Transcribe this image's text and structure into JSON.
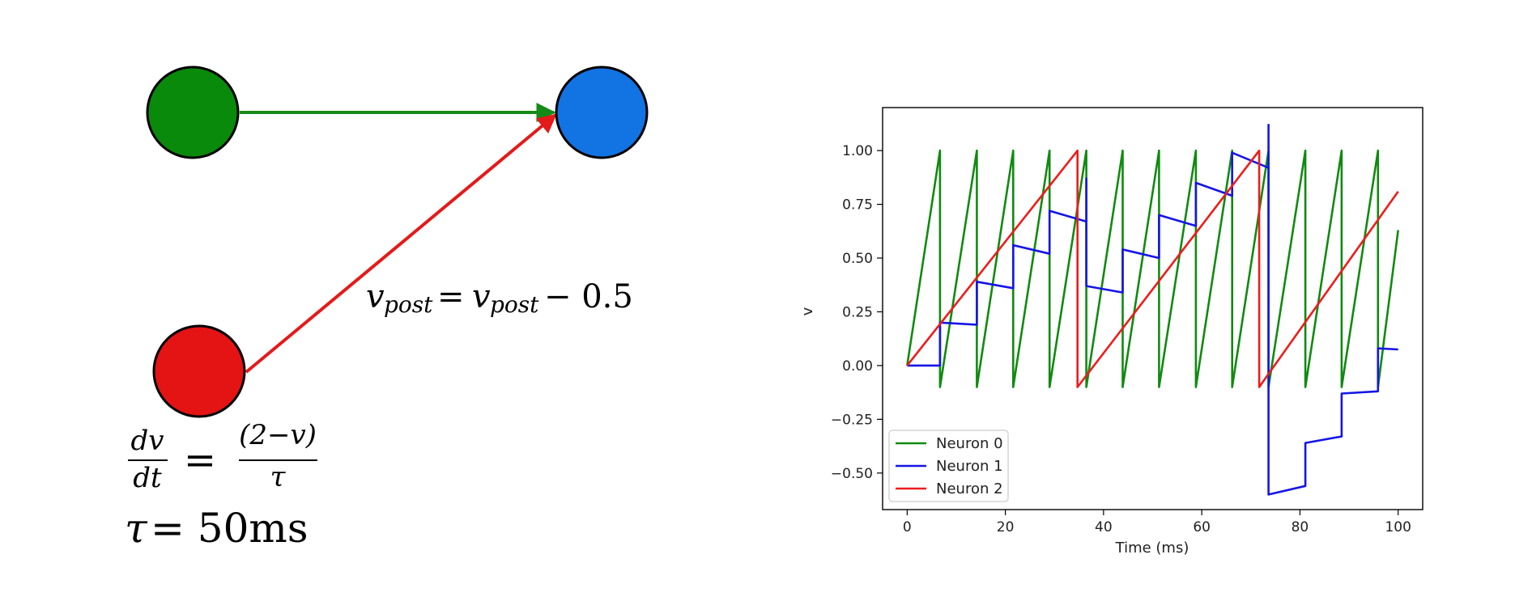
{
  "diagram": {
    "colors": {
      "neuron_green": "#0a8a0a",
      "neuron_blue": "#1273e3",
      "neuron_red": "#e41414",
      "edge_green": "#168a16",
      "edge_red": "#e41a1a"
    },
    "edge_label": {
      "lhs": "v",
      "lhs_sub": "post",
      "rhs": "v",
      "rhs_sub": "post",
      "minus_value": "− 0.5"
    },
    "equation": {
      "num_left": "dv",
      "den_left": "dt",
      "num_right": "(2−v)",
      "den_right": "τ"
    },
    "tau_label": {
      "symbol": "τ",
      "value": "= 50ms"
    }
  },
  "chart_data": {
    "type": "line",
    "xlabel": "Time (ms)",
    "ylabel": "v",
    "xlim": [
      -5,
      105
    ],
    "ylim": [
      -0.67,
      1.2
    ],
    "xticks": [
      0,
      20,
      40,
      60,
      80,
      100
    ],
    "yticks": [
      -0.5,
      -0.25,
      0.0,
      0.25,
      0.5,
      0.75,
      1.0
    ],
    "xtick_labels": [
      "0",
      "20",
      "40",
      "60",
      "80",
      "100"
    ],
    "ytick_labels": [
      "−0.50",
      "−0.25",
      "0.00",
      "0.25",
      "0.50",
      "0.75",
      "1.00"
    ],
    "grid": false,
    "legend_position": "lower-left",
    "series": [
      {
        "name": "Neuron 0",
        "color": "#108a10",
        "points": [
          [
            0,
            0
          ],
          [
            6.7,
            1.0
          ],
          [
            6.7,
            -0.1
          ],
          [
            14.2,
            1.0
          ],
          [
            14.2,
            -0.1
          ],
          [
            21.6,
            1.0
          ],
          [
            21.6,
            -0.1
          ],
          [
            29.0,
            1.0
          ],
          [
            29.0,
            -0.1
          ],
          [
            36.5,
            1.0
          ],
          [
            36.5,
            -0.1
          ],
          [
            43.9,
            1.0
          ],
          [
            43.9,
            -0.1
          ],
          [
            51.3,
            1.0
          ],
          [
            51.3,
            -0.1
          ],
          [
            58.8,
            1.0
          ],
          [
            58.8,
            -0.1
          ],
          [
            66.2,
            1.0
          ],
          [
            66.2,
            -0.1
          ],
          [
            73.6,
            1.0
          ],
          [
            73.6,
            -0.1
          ],
          [
            81.1,
            1.0
          ],
          [
            81.1,
            -0.1
          ],
          [
            88.5,
            1.0
          ],
          [
            88.5,
            -0.1
          ],
          [
            95.9,
            1.0
          ],
          [
            95.9,
            -0.1
          ],
          [
            100,
            0.63
          ]
        ]
      },
      {
        "name": "Neuron 1",
        "color": "#1515e6",
        "points": [
          [
            0,
            0
          ],
          [
            6.7,
            0
          ],
          [
            6.7,
            0.2
          ],
          [
            14.2,
            0.19
          ],
          [
            14.2,
            0.39
          ],
          [
            21.6,
            0.36
          ],
          [
            21.6,
            0.56
          ],
          [
            29.0,
            0.52
          ],
          [
            29.0,
            0.72
          ],
          [
            36.5,
            0.67
          ],
          [
            36.5,
            0.87
          ],
          [
            36.5,
            0.37
          ],
          [
            43.9,
            0.34
          ],
          [
            43.9,
            0.54
          ],
          [
            51.3,
            0.5
          ],
          [
            51.3,
            0.7
          ],
          [
            58.8,
            0.65
          ],
          [
            58.8,
            0.85
          ],
          [
            66.2,
            0.79
          ],
          [
            66.2,
            0.99
          ],
          [
            73.6,
            0.92
          ],
          [
            73.6,
            1.12
          ],
          [
            73.6,
            -0.1
          ],
          [
            73.6,
            -0.6
          ],
          [
            81.1,
            -0.56
          ],
          [
            81.1,
            -0.36
          ],
          [
            88.5,
            -0.33
          ],
          [
            88.5,
            -0.13
          ],
          [
            95.9,
            -0.12
          ],
          [
            95.9,
            0.08
          ],
          [
            100,
            0.075
          ]
        ]
      },
      {
        "name": "Neuron 2",
        "color": "#ee1c1c",
        "points": [
          [
            0,
            0
          ],
          [
            34.7,
            1.0
          ],
          [
            34.7,
            -0.1
          ],
          [
            71.7,
            1.0
          ],
          [
            71.7,
            -0.1
          ],
          [
            100,
            0.81
          ]
        ]
      }
    ]
  }
}
